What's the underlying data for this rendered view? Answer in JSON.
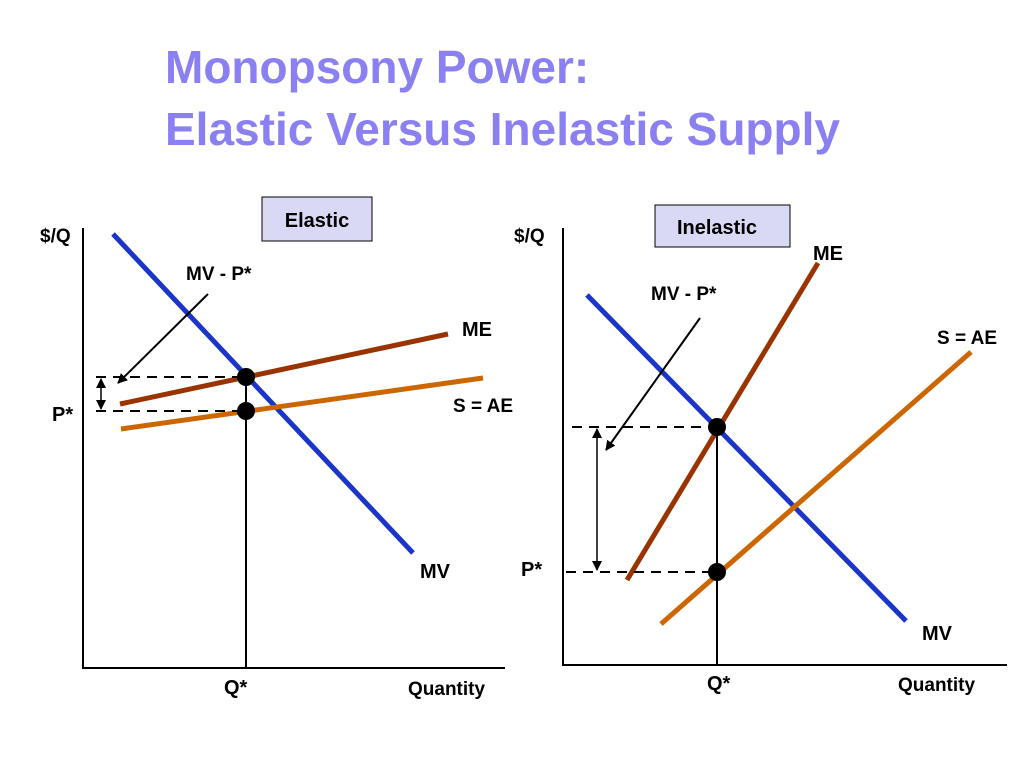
{
  "title": [
    "Monopsony Power:",
    "Elastic Versus Inelastic Supply"
  ],
  "panels": [
    {
      "box": "Elastic",
      "y_axis": "$/Q",
      "x_axis": "Quantity",
      "mv_p": "MV - P*",
      "me": "ME",
      "supply": "S = AE",
      "mv": "MV",
      "p_star": "P*",
      "q_star": "Q*"
    },
    {
      "box": "Inelastic",
      "y_axis": "$/Q",
      "x_axis": "Quantity",
      "mv_p": "MV - P*",
      "me": "ME",
      "supply": "S = AE",
      "mv": "MV",
      "p_star": "P*",
      "q_star": "Q*"
    }
  ]
}
